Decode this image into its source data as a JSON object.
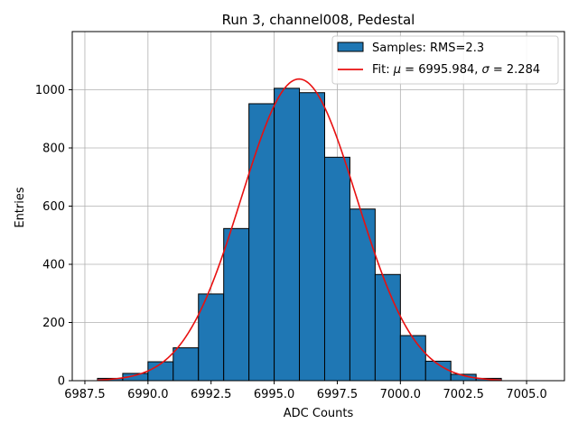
{
  "chart_data": {
    "type": "bar",
    "title": "Run 3, channel008, Pedestal",
    "xlabel": "ADC Counts",
    "ylabel": "Entries",
    "xlim": [
      6987.0,
      7006.5
    ],
    "ylim": [
      0,
      1200
    ],
    "xticks": [
      6987.5,
      6990.0,
      6992.5,
      6995.0,
      6997.5,
      7000.0,
      7002.5,
      7005.0
    ],
    "xtick_labels": [
      "6987.5",
      "6990.0",
      "6992.5",
      "6995.0",
      "6997.5",
      "7000.0",
      "7002.5",
      "7005.0"
    ],
    "yticks": [
      0,
      200,
      400,
      600,
      800,
      1000
    ],
    "ytick_labels": [
      "0",
      "200",
      "400",
      "600",
      "800",
      "1000"
    ],
    "grid": true,
    "legend_position": "top-right",
    "bin_width": 1,
    "bins": [
      {
        "left": 6988,
        "value": 8
      },
      {
        "left": 6989,
        "value": 25
      },
      {
        "left": 6990,
        "value": 65
      },
      {
        "left": 6991,
        "value": 113
      },
      {
        "left": 6992,
        "value": 298
      },
      {
        "left": 6993,
        "value": 523
      },
      {
        "left": 6994,
        "value": 952
      },
      {
        "left": 6995,
        "value": 1005
      },
      {
        "left": 6996,
        "value": 990
      },
      {
        "left": 6997,
        "value": 768
      },
      {
        "left": 6998,
        "value": 590
      },
      {
        "left": 6999,
        "value": 365
      },
      {
        "left": 7000,
        "value": 155
      },
      {
        "left": 7001,
        "value": 67
      },
      {
        "left": 7002,
        "value": 22
      },
      {
        "left": 7003,
        "value": 8
      }
    ],
    "fit": {
      "mu": 6995.984,
      "sigma": 2.284,
      "amplitude": 1037,
      "x_range": [
        6988,
        7004
      ]
    },
    "series": [
      {
        "name": "Samples: RMS=2.3",
        "color": "#1f77b4",
        "edge_color": "#000000"
      },
      {
        "name_prefix": "Fit: ",
        "name_mu": "μ",
        "name_mid": " = 6995.984, ",
        "name_sigma": "σ",
        "name_suffix": " = 2.284",
        "color": "#e81010"
      }
    ]
  }
}
